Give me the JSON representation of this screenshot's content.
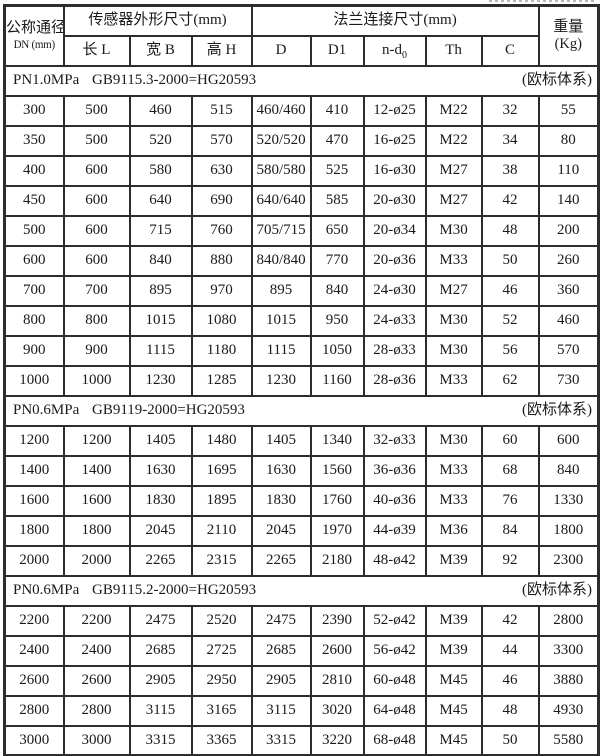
{
  "header": {
    "dn_line1": "公称通径",
    "dn_line2": "DN (mm)",
    "sensor_group": "传感器外形尺寸(mm)",
    "flange_group": "法兰连接尺寸(mm)",
    "weight_line1": "重量",
    "weight_line2": "(Kg)",
    "sub_cols": [
      "长 L",
      "宽 B",
      "高 H",
      "D",
      "D1",
      "Th",
      "C"
    ],
    "nd_prefix": "n-d",
    "nd_sub": "0"
  },
  "sections": [
    {
      "pressure": "PN1.0MPa",
      "standard": "GB9115.3-2000=HG20593",
      "note": "(欧标体系)",
      "rows": [
        [
          "300",
          "500",
          "460",
          "515",
          "460/460",
          "410",
          "12-ø25",
          "M22",
          "32",
          "55"
        ],
        [
          "350",
          "500",
          "520",
          "570",
          "520/520",
          "470",
          "16-ø25",
          "M22",
          "34",
          "80"
        ],
        [
          "400",
          "600",
          "580",
          "630",
          "580/580",
          "525",
          "16-ø30",
          "M27",
          "38",
          "110"
        ],
        [
          "450",
          "600",
          "640",
          "690",
          "640/640",
          "585",
          "20-ø30",
          "M27",
          "42",
          "140"
        ],
        [
          "500",
          "600",
          "715",
          "760",
          "705/715",
          "650",
          "20-ø34",
          "M30",
          "48",
          "200"
        ],
        [
          "600",
          "600",
          "840",
          "880",
          "840/840",
          "770",
          "20-ø36",
          "M33",
          "50",
          "260"
        ],
        [
          "700",
          "700",
          "895",
          "970",
          "895",
          "840",
          "24-ø30",
          "M27",
          "46",
          "360"
        ],
        [
          "800",
          "800",
          "1015",
          "1080",
          "1015",
          "950",
          "24-ø33",
          "M30",
          "52",
          "460"
        ],
        [
          "900",
          "900",
          "1115",
          "1180",
          "1115",
          "1050",
          "28-ø33",
          "M30",
          "56",
          "570"
        ],
        [
          "1000",
          "1000",
          "1230",
          "1285",
          "1230",
          "1160",
          "28-ø36",
          "M33",
          "62",
          "730"
        ]
      ]
    },
    {
      "pressure": "PN0.6MPa",
      "standard": "GB9119-2000=HG20593",
      "note": "(欧标体系)",
      "rows": [
        [
          "1200",
          "1200",
          "1405",
          "1480",
          "1405",
          "1340",
          "32-ø33",
          "M30",
          "60",
          "600"
        ],
        [
          "1400",
          "1400",
          "1630",
          "1695",
          "1630",
          "1560",
          "36-ø36",
          "M33",
          "68",
          "840"
        ],
        [
          "1600",
          "1600",
          "1830",
          "1895",
          "1830",
          "1760",
          "40-ø36",
          "M33",
          "76",
          "1330"
        ],
        [
          "1800",
          "1800",
          "2045",
          "2110",
          "2045",
          "1970",
          "44-ø39",
          "M36",
          "84",
          "1800"
        ],
        [
          "2000",
          "2000",
          "2265",
          "2315",
          "2265",
          "2180",
          "48-ø42",
          "M39",
          "92",
          "2300"
        ]
      ]
    },
    {
      "pressure": "PN0.6MPa",
      "standard": "GB9115.2-2000=HG20593",
      "note": "(欧标体系)",
      "rows": [
        [
          "2200",
          "2200",
          "2475",
          "2520",
          "2475",
          "2390",
          "52-ø42",
          "M39",
          "42",
          "2800"
        ],
        [
          "2400",
          "2400",
          "2685",
          "2725",
          "2685",
          "2600",
          "56-ø42",
          "M39",
          "44",
          "3300"
        ],
        [
          "2600",
          "2600",
          "2905",
          "2950",
          "2905",
          "2810",
          "60-ø48",
          "M45",
          "46",
          "3880"
        ],
        [
          "2800",
          "2800",
          "3115",
          "3165",
          "3115",
          "3020",
          "64-ø48",
          "M45",
          "48",
          "4930"
        ],
        [
          "3000",
          "3000",
          "3315",
          "3365",
          "3315",
          "3220",
          "68-ø48",
          "M45",
          "50",
          "5580"
        ]
      ]
    }
  ],
  "colors": {
    "border": "#2d2d2d",
    "text": "#1a1a1a",
    "background": "#ffffff"
  }
}
